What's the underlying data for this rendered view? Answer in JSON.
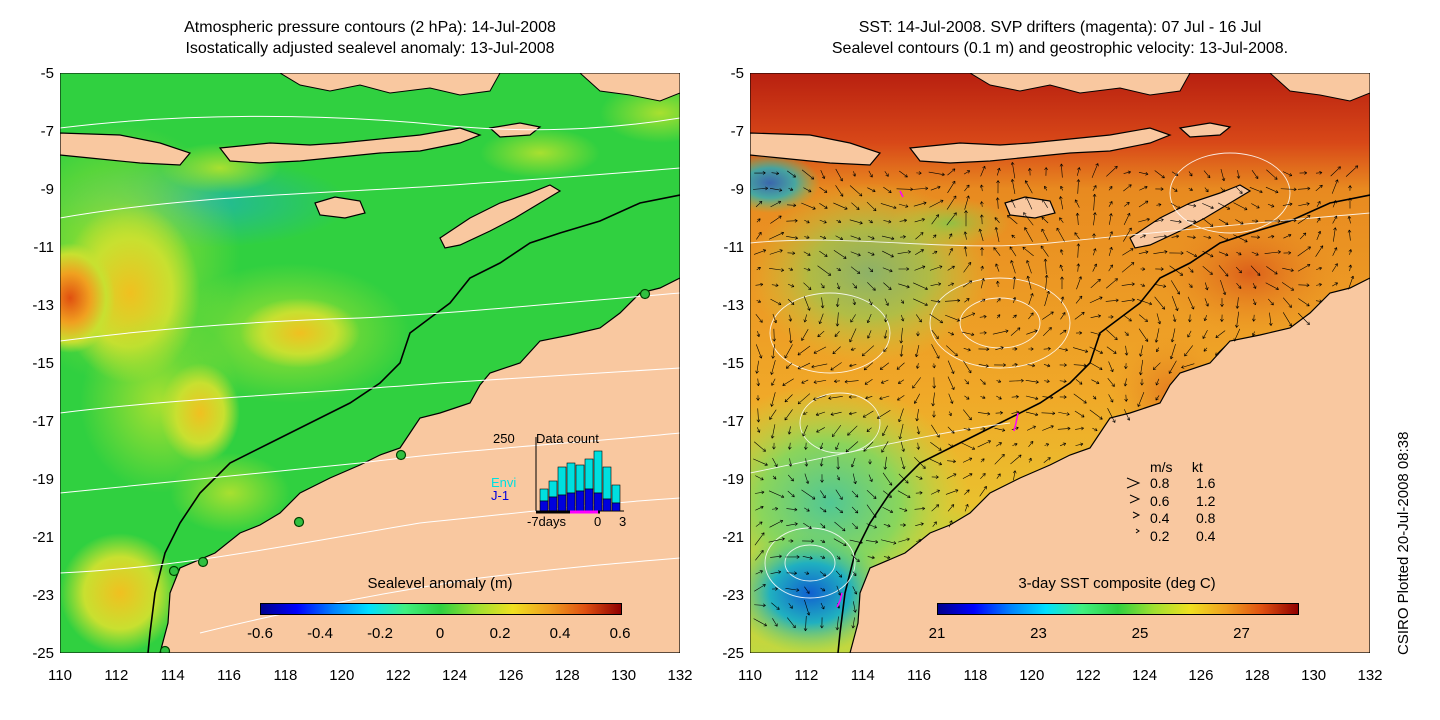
{
  "left_panel": {
    "title_line1": "Atmospheric pressure contours (2 hPa): 14-Jul-2008",
    "title_line2": "Isostatically adjusted sealevel anomaly: 13-Jul-2008",
    "colorbar_label": "Sealevel anomaly (m)",
    "colorbar_ticks": [
      "-0.6",
      "-0.4",
      "-0.2",
      "0",
      "0.2",
      "0.4",
      "0.6"
    ],
    "inset": {
      "title": "Data count",
      "ymax_label": "250",
      "series": [
        {
          "name": "Envi",
          "color": "#00e0e0"
        },
        {
          "name": "J-1",
          "color": "#0000dd"
        }
      ],
      "x_labels": [
        "-7days",
        "0",
        "3"
      ]
    }
  },
  "right_panel": {
    "title_line1": "SST: 14-Jul-2008. SVP drifters (magenta): 07 Jul - 16 Jul",
    "title_line2": "Sealevel contours (0.1 m) and geostrophic velocity: 13-Jul-2008.",
    "colorbar_label": "3-day SST composite (deg C)",
    "colorbar_ticks": [
      "21",
      "23",
      "25",
      "27"
    ],
    "velocity_key": {
      "header_ms": "m/s",
      "header_kt": "kt",
      "rows": [
        {
          "ms": "0.8",
          "kt": "1.6"
        },
        {
          "ms": "0.6",
          "kt": "1.2"
        },
        {
          "ms": "0.4",
          "kt": "0.8"
        },
        {
          "ms": "0.2",
          "kt": "0.4"
        }
      ]
    }
  },
  "axes": {
    "lat_labels": [
      "-5",
      "-7",
      "-9",
      "-11",
      "-13",
      "-15",
      "-17",
      "-19",
      "-21",
      "-23",
      "-25"
    ],
    "lon_labels": [
      "110",
      "112",
      "114",
      "116",
      "118",
      "120",
      "122",
      "124",
      "126",
      "128",
      "130",
      "132"
    ]
  },
  "colors": {
    "land": "#f9c8a0",
    "coast": "#000000",
    "contour": "#ffffff",
    "drifter": "#ff00ff"
  },
  "stamp": "CSIRO Plotted 20-Jul-2008 08:38"
}
